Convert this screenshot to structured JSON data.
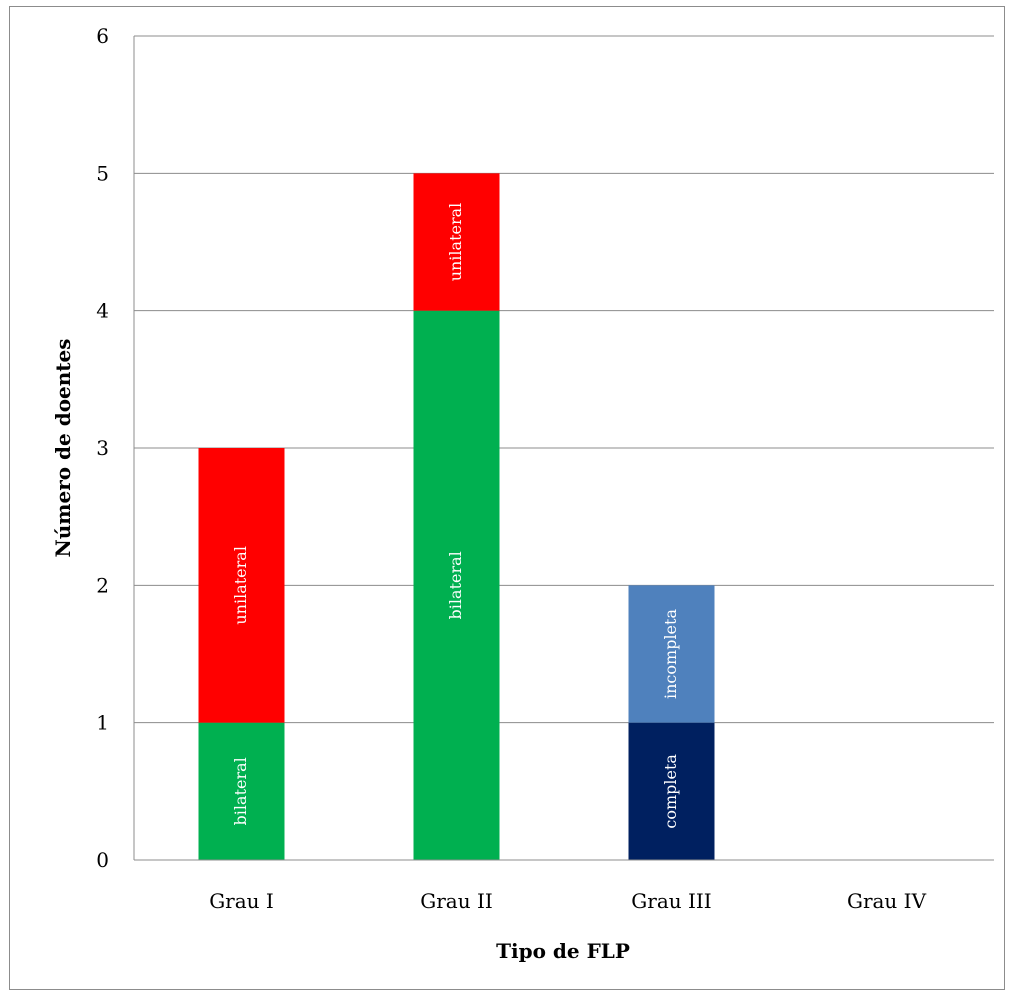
{
  "chart_data": {
    "type": "bar",
    "stacked": true,
    "title": "",
    "xlabel": "Tipo de FLP",
    "ylabel": "Número de doentes",
    "categories": [
      "Grau I",
      "Grau II",
      "Grau III",
      "Grau IV"
    ],
    "ylim": [
      0,
      6
    ],
    "yticks": [
      0,
      1,
      2,
      3,
      4,
      5,
      6
    ],
    "grid": true,
    "legend": "none",
    "segments": [
      [
        {
          "label": "bilateral",
          "value": 1,
          "color": "#00B050"
        },
        {
          "label": "unilateral",
          "value": 2,
          "color": "#FF0000"
        }
      ],
      [
        {
          "label": "bilateral",
          "value": 4,
          "color": "#00B050"
        },
        {
          "label": "unilateral",
          "value": 1,
          "color": "#FF0000"
        }
      ],
      [
        {
          "label": "completa",
          "value": 1,
          "color": "#002060"
        },
        {
          "label": "incompleta",
          "value": 1,
          "color": "#4F81BD"
        }
      ],
      []
    ]
  }
}
